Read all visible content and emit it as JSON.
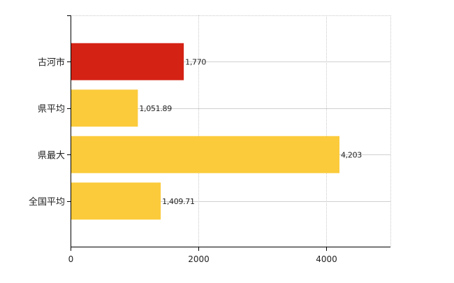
{
  "chart_data": {
    "type": "bar",
    "orientation": "horizontal",
    "categories": [
      "古河市",
      "県平均",
      "県最大",
      "全国平均"
    ],
    "values": [
      1770,
      1051.89,
      4203,
      1409.71
    ],
    "value_labels": [
      "1,770",
      "1,051.89",
      "4,203",
      "1,409.71"
    ],
    "bar_colors": [
      "#d42215",
      "#fbcb3b",
      "#fbcb3b",
      "#fbcb3b"
    ],
    "xlim": [
      0,
      5000
    ],
    "x_ticks": [
      0,
      2000,
      4000
    ],
    "x_tick_labels": [
      "0",
      "2000",
      "4000"
    ],
    "x_gridlines": [
      0,
      2000,
      4000,
      5000
    ],
    "grid": true,
    "title": "",
    "xlabel": "",
    "ylabel": ""
  }
}
